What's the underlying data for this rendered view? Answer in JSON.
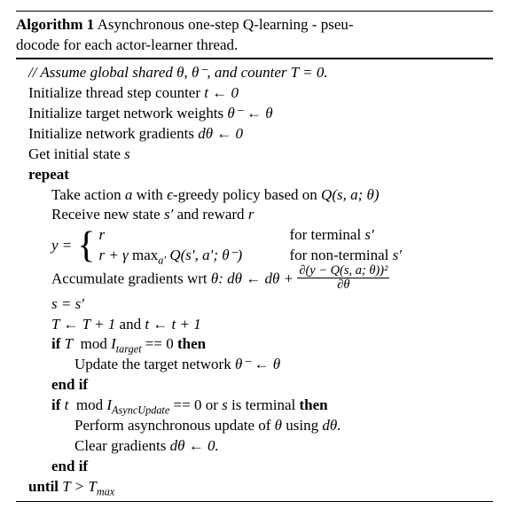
{
  "title": {
    "label": "Algorithm 1",
    "text_a": "Asynchronous one-step Q-learning - pseu-",
    "text_b": "docode for each actor-learner thread."
  },
  "comment": "// Assume global shared θ, θ⁻, and counter T = 0.",
  "lines": {
    "l1": "Initialize thread step counter",
    "l1m": "t ← 0",
    "l2": "Initialize target network weights",
    "l2m": "θ⁻ ← θ",
    "l3": "Initialize network gradients",
    "l3m": "dθ ← 0",
    "l4": "Get initial state",
    "l4m": "s",
    "repeat": "repeat",
    "r1a": "Take action",
    "r1b": "a",
    "r1c": "with",
    "r1d": "ϵ",
    "r1e": "-greedy policy based on",
    "r1f": "Q(s, a; θ)",
    "r2a": "Receive new state",
    "r2b": "s′",
    "r2c": "and reward",
    "r2d": "r",
    "y_lhs": "y =",
    "case1_expr": "r",
    "case1_cond_a": "for terminal",
    "case1_cond_b": "s′",
    "case2_a": "r + γ",
    "case2_max": "max",
    "case2_sub": "a′",
    "case2_b": "Q(s′, a′; θ⁻)",
    "case2_cond_a": "for non-terminal",
    "case2_cond_b": "s′",
    "acc_a": "Accumulate gradients wrt",
    "acc_b": "θ:",
    "acc_c": "dθ ← dθ +",
    "frac_num": "∂(y − Q(s, a; θ))²",
    "frac_den": "∂θ",
    "ss": "s = s′",
    "tline_a": "T ← T + 1",
    "tline_b": "and",
    "tline_c": "t ← t + 1",
    "if1a": "if",
    "if1b": "T",
    "if1c": "mod",
    "if1d": "I",
    "if1d_sub": "target",
    "if1e": "== 0",
    "then": "then",
    "upd_a": "Update the target network",
    "upd_b": "θ⁻ ← θ",
    "endif": "end if",
    "if2a": "if",
    "if2b": "t",
    "if2c": "mod",
    "if2d": "I",
    "if2d_sub": "AsyncUpdate",
    "if2e": "== 0",
    "if2f": "or",
    "if2g": "s",
    "if2h": "is terminal",
    "perf_a": "Perform asynchronous update of",
    "perf_b": "θ",
    "perf_c": "using",
    "perf_d": "dθ.",
    "clr_a": "Clear gradients",
    "clr_b": "dθ ← 0.",
    "until": "until",
    "until_m": "T > T",
    "until_sub": "max"
  }
}
